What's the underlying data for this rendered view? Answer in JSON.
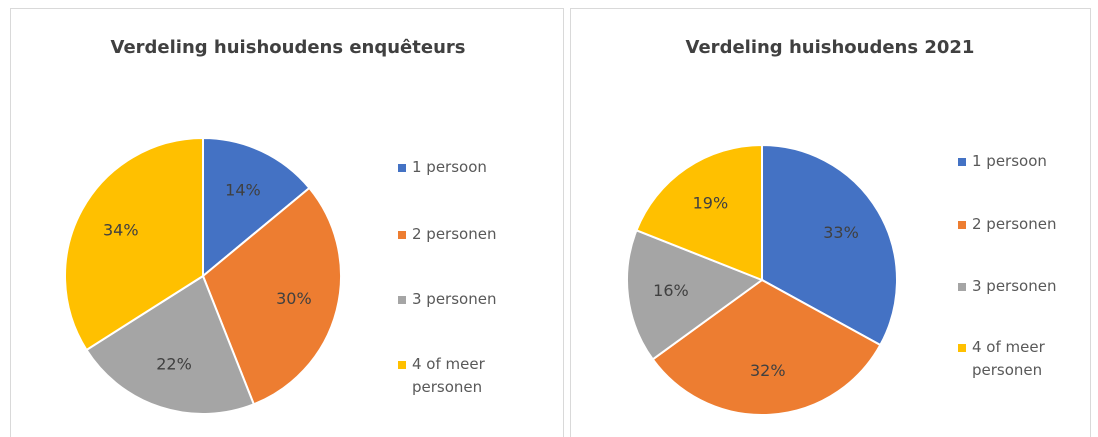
{
  "chart_data": [
    {
      "type": "pie",
      "title": "Verdeling huishoudens enquêteurs",
      "categories": [
        "1 persoon",
        "2 personen",
        "3 personen",
        "4 of meer personen"
      ],
      "values": [
        14,
        30,
        22,
        34
      ],
      "value_labels": [
        "14%",
        "30%",
        "22%",
        "34%"
      ],
      "colors": [
        "#4472c4",
        "#ed7d31",
        "#a5a5a5",
        "#ffc000"
      ],
      "legend": "right"
    },
    {
      "type": "pie",
      "title": "Verdeling huishoudens 2021",
      "categories": [
        "1 persoon",
        "2 personen",
        "3 personen",
        "4 of meer personen"
      ],
      "values": [
        33,
        32,
        16,
        19
      ],
      "value_labels": [
        "33%",
        "32%",
        "16%",
        "19%"
      ],
      "colors": [
        "#4472c4",
        "#ed7d31",
        "#a5a5a5",
        "#ffc000"
      ],
      "legend": "right"
    }
  ]
}
